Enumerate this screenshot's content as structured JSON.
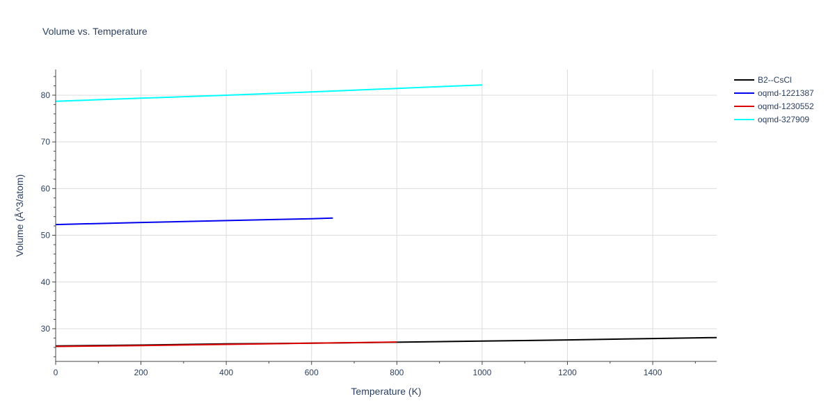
{
  "chart_data": {
    "type": "line",
    "title": "Volume vs. Temperature",
    "xlabel": "Temperature (K)",
    "ylabel": "Volume (Å^3/atom)",
    "xlim": [
      0,
      1550
    ],
    "ylim": [
      23,
      85.5
    ],
    "xticks": [
      0,
      200,
      400,
      600,
      800,
      1000,
      1200,
      1400
    ],
    "yticks": [
      30,
      40,
      50,
      60,
      70,
      80
    ],
    "grid": true,
    "legend_position": "top-right",
    "series": [
      {
        "name": "B2--CsCl",
        "color": "#000000",
        "x": [
          0,
          200,
          400,
          600,
          800,
          1000,
          1200,
          1400,
          1550
        ],
        "y": [
          26.3,
          26.5,
          26.75,
          26.9,
          27.1,
          27.35,
          27.6,
          27.9,
          28.1
        ]
      },
      {
        "name": "oqmd-1221387",
        "color": "#0000ee",
        "x": [
          0,
          200,
          400,
          600,
          650
        ],
        "y": [
          52.3,
          52.75,
          53.15,
          53.55,
          53.7
        ]
      },
      {
        "name": "oqmd-1230552",
        "color": "#dd0000",
        "x": [
          0,
          200,
          400,
          600,
          800
        ],
        "y": [
          26.2,
          26.4,
          26.65,
          26.9,
          27.15
        ]
      },
      {
        "name": "oqmd-327909",
        "color": "#00ffff",
        "x": [
          0,
          200,
          400,
          600,
          800,
          1000
        ],
        "y": [
          78.7,
          79.35,
          80.0,
          80.7,
          81.45,
          82.2
        ]
      }
    ]
  }
}
